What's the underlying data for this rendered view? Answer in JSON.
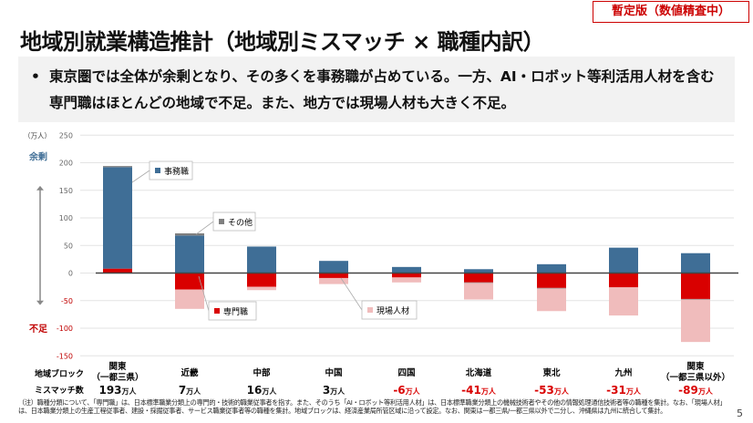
{
  "badge": "暫定版（数値精査中）",
  "title": "地域別就業構造推計（地域別ミスマッチ × 職種内訳）",
  "summary": "東京圏では全体が余剰となり、その多くを事務職が占めている。一方、AI・ロボット等利活用人材を含む専門職はほとんどの地域で不足。また、地方では現場人材も大きく不足。",
  "chart_data": {
    "type": "bar",
    "stacked": true,
    "ylabel": "（万人）",
    "ylim": [
      -150,
      250
    ],
    "yticks": [
      250,
      200,
      150,
      100,
      50,
      0,
      -50,
      -100,
      -150
    ],
    "surplus_label": "余剰",
    "shortage_label": "不足",
    "row_labels": {
      "region": "地域ブロック",
      "mismatch": "ミスマッチ数"
    },
    "categories": [
      "関東\n（一都三県）",
      "近畿",
      "中部",
      "中国",
      "四国",
      "北海道",
      "東北",
      "九州",
      "関東\n（一都三県以外）"
    ],
    "mismatch": [
      "193",
      "7",
      "16",
      "3",
      "-6",
      "-41",
      "-53",
      "-31",
      "-89"
    ],
    "mismatch_unit": "万人",
    "series": [
      {
        "name": "事務職",
        "color": "#3f6e96",
        "values": [
          184,
          68,
          48,
          22,
          11,
          7,
          16,
          46,
          36
        ]
      },
      {
        "name": "その他",
        "color": "#7f7f7f",
        "values": [
          2,
          4,
          0,
          0,
          0,
          -1,
          -1,
          0,
          -1
        ]
      },
      {
        "name": "専門職",
        "color": "#d90000",
        "values": [
          8,
          -30,
          -25,
          -9,
          -8,
          -17,
          -27,
          -26,
          -47
        ]
      },
      {
        "name": "現場人材",
        "color": "#f0bcbc",
        "values": [
          0,
          -35,
          -6,
          -11,
          -9,
          -30,
          -41,
          -51,
          -77
        ]
      }
    ],
    "colors": {
      "surplus": "#3f6e96",
      "shortage": "#c00000",
      "negative_value": "#d90000"
    }
  },
  "footnote": [
    "（注）職種分類について、「専門職」は、日本標準職業分類上の専門的・技術的職業従事者を指す。また、そのうち「AI・ロボット等利活用人材」は、日本標準職業分類上の機械技術者やその他の情報処理通信技術者等の職種を集計。なお、「現場人材」は、",
    "日本職業分類上の生産工程従事者、建設・採掘従事者、サービス職業従事者等の職種を集計。地域ブロックは、経済産業局所管区域に沿って設定。なお、関東は一都三県/一都三県以外で二分し、沖縄県は九州に統合して集計。"
  ],
  "page_number": "5"
}
